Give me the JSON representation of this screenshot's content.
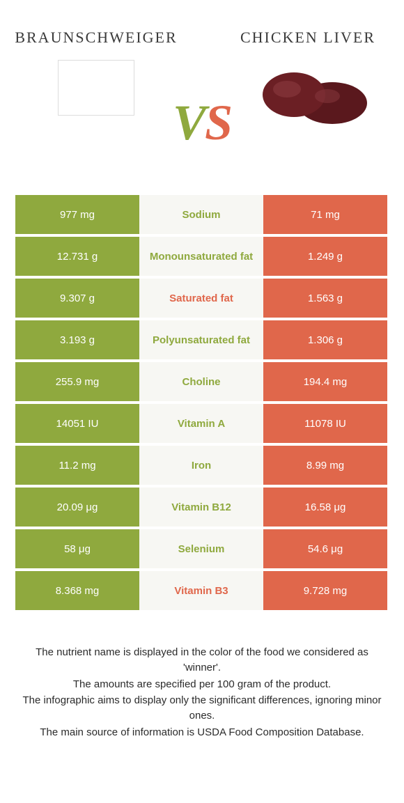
{
  "colors": {
    "left": "#8fa93e",
    "right": "#e0674b",
    "mid_bg": "#f7f7f3",
    "page_bg": "#ffffff",
    "text": "#333333",
    "liver_fill": "#6b1f24",
    "liver_highlight": "#8a3a3f"
  },
  "header": {
    "left_title": "BRAUNSCHWEIGER",
    "right_title": "CHICKEN LIVER",
    "vs_v": "V",
    "vs_s": "S"
  },
  "table": {
    "rows": [
      {
        "left": "977 mg",
        "label": "Sodium",
        "right": "71 mg",
        "winner": "left"
      },
      {
        "left": "12.731 g",
        "label": "Monounsaturated fat",
        "right": "1.249 g",
        "winner": "left"
      },
      {
        "left": "9.307 g",
        "label": "Saturated fat",
        "right": "1.563 g",
        "winner": "right"
      },
      {
        "left": "3.193 g",
        "label": "Polyunsaturated fat",
        "right": "1.306 g",
        "winner": "left"
      },
      {
        "left": "255.9 mg",
        "label": "Choline",
        "right": "194.4 mg",
        "winner": "left"
      },
      {
        "left": "14051 IU",
        "label": "Vitamin A",
        "right": "11078 IU",
        "winner": "left"
      },
      {
        "left": "11.2 mg",
        "label": "Iron",
        "right": "8.99 mg",
        "winner": "left"
      },
      {
        "left": "20.09 μg",
        "label": "Vitamin B12",
        "right": "16.58 μg",
        "winner": "left"
      },
      {
        "left": "58 μg",
        "label": "Selenium",
        "right": "54.6 μg",
        "winner": "left"
      },
      {
        "left": "8.368 mg",
        "label": "Vitamin B3",
        "right": "9.728 mg",
        "winner": "right"
      }
    ]
  },
  "footer": {
    "line1": "The nutrient name is displayed in the color of the food we considered as 'winner'.",
    "line2": "The amounts are specified per 100 gram of the product.",
    "line3": "The infographic aims to display only the significant differences, ignoring minor ones.",
    "line4": "The main source of information is USDA Food Composition Database."
  }
}
